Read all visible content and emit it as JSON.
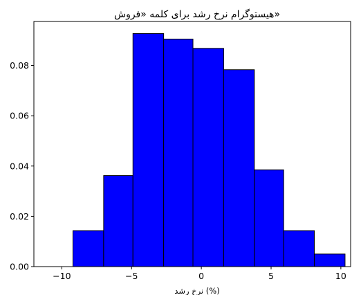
{
  "chart_data": {
    "type": "bar",
    "title": "هیستوگرام نرخ رشد برای کلمه «فروش»",
    "xlabel": "نرخ رشد (%)",
    "ylabel": "",
    "bar_color": "#0000ff",
    "edge_color": "#000000",
    "bin_edges": [
      -11.3,
      -9.2,
      -7.0,
      -4.9,
      -2.7,
      -0.6,
      1.6,
      3.8,
      5.9,
      8.1,
      10.3
    ],
    "values": [
      0.0,
      0.0143,
      0.0362,
      0.0927,
      0.0905,
      0.0868,
      0.0783,
      0.0385,
      0.0143,
      0.005
    ],
    "xlim": [
      -12.0,
      10.7
    ],
    "ylim": [
      0,
      0.0975
    ],
    "xticks": [
      -10,
      -5,
      0,
      5,
      10
    ],
    "xtick_labels": [
      "−10",
      "−5",
      "0",
      "5",
      "10"
    ],
    "yticks": [
      0.0,
      0.02,
      0.04,
      0.06,
      0.08
    ],
    "ytick_labels": [
      "0.00",
      "0.02",
      "0.04",
      "0.06",
      "0.08"
    ],
    "grid": false
  }
}
